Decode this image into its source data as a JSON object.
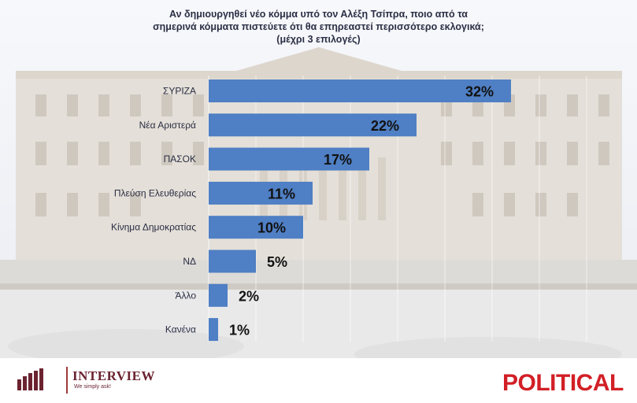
{
  "title_lines": [
    "Αν δημιουργηθεί νέο κόμμα υπό τον Αλέξη Τσίπρα, ποιο από τα",
    "σημερινά κόμματα πιστεύετε ότι θα επηρεαστεί περισσότερο εκλογικά;",
    "(μέχρι 3 επιλογές)"
  ],
  "chart_data": {
    "type": "bar",
    "orientation": "horizontal",
    "categories": [
      "ΣΥΡΙΖΑ",
      "Νέα Αριστερά",
      "ΠΑΣΟΚ",
      "Πλεύση Ελευθερίας",
      "Κίνημα Δημοκρατίας",
      "ΝΔ",
      "Άλλο",
      "Κανένα"
    ],
    "values": [
      32,
      22,
      17,
      11,
      10,
      5,
      2,
      1
    ],
    "value_labels": [
      "32%",
      "22%",
      "17%",
      "11%",
      "10%",
      "5%",
      "2%",
      "1%"
    ],
    "unit": "%",
    "xlim": [
      0,
      40
    ],
    "grid": true,
    "bar_color": "#4f7fc4"
  },
  "logos": {
    "interview_name": "INTERVIEW",
    "interview_tagline": "We simply ask!",
    "political": "POLITICAL",
    "interview_color": "#6b2330",
    "political_color": "#d21f26"
  }
}
